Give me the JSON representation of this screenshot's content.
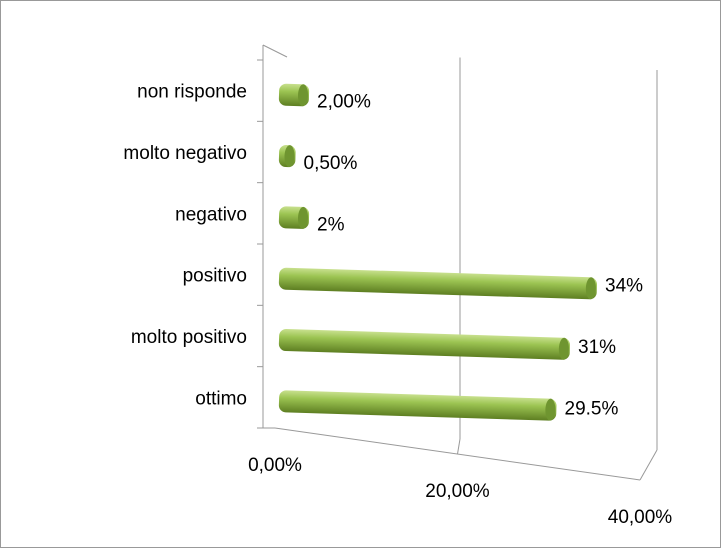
{
  "chart_data": {
    "type": "bar3d",
    "categories": [
      "ottimo",
      "molto positivo",
      "positivo",
      "negativo",
      "molto negativo",
      "non risponde"
    ],
    "values": [
      29.5,
      31,
      34,
      2,
      0.5,
      2
    ],
    "value_labels": [
      "29.5%",
      "31%",
      "34%",
      "2%",
      "0,50%",
      "2,00%"
    ],
    "color": "#8db641",
    "xlim": [
      0,
      40
    ],
    "xticks": [
      {
        "value": 0,
        "label": "0,00%"
      },
      {
        "value": 20,
        "label": "20,00%"
      },
      {
        "value": 40,
        "label": "40,00%"
      }
    ],
    "grid": true
  }
}
